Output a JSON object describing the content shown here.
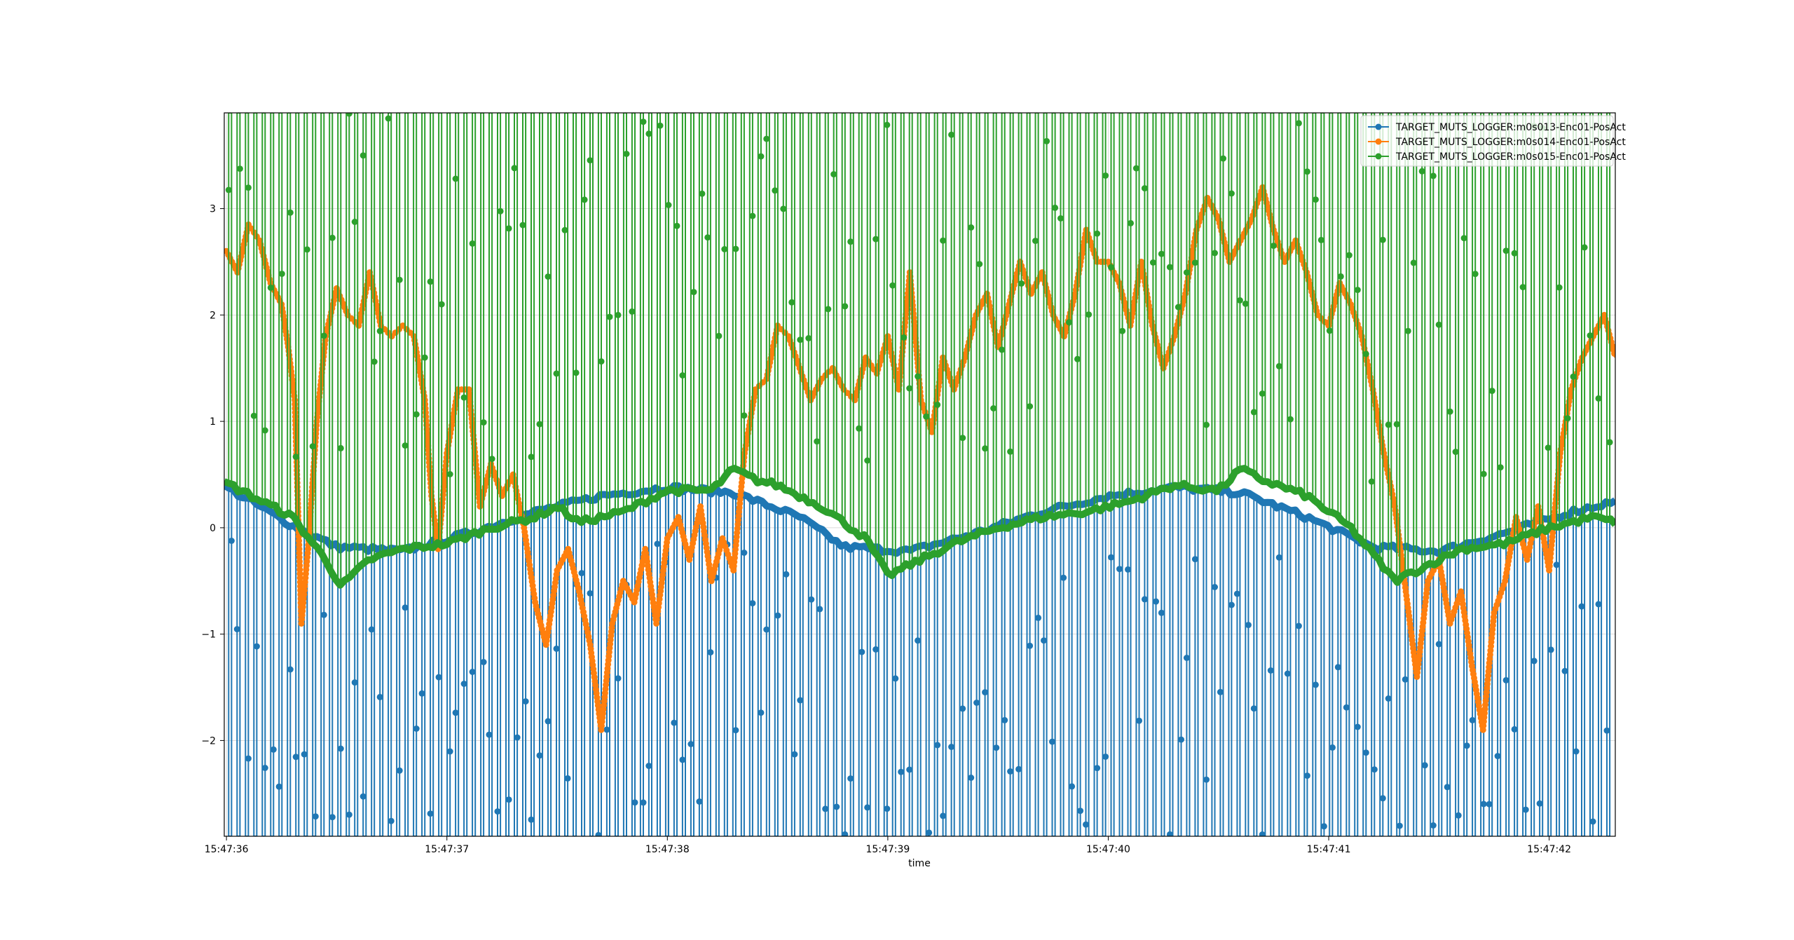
{
  "chart_data": {
    "type": "line",
    "title": "",
    "xlabel": "time",
    "ylabel": "",
    "xlim": [
      "15:47:35.99",
      "15:47:42.30"
    ],
    "ylim": [
      -2.9,
      3.9
    ],
    "x_ticks": [
      "15:47:36",
      "15:47:37",
      "15:47:38",
      "15:47:39",
      "15:47:40",
      "15:47:41",
      "15:47:42"
    ],
    "y_ticks": [
      "-2",
      "-1",
      "0",
      "1",
      "2",
      "3"
    ],
    "y_tick_values": [
      -2,
      -1,
      0,
      1,
      2,
      3
    ],
    "grid": true,
    "legend_position": "top-right",
    "series": [
      {
        "name": "TARGET_MUTS_LOGGER:m0s013-Enc01-PosAct",
        "color": "#1f77b4",
        "marker": "circle",
        "baseline": [
          [
            0.0,
            0.38
          ],
          [
            0.3,
            0.02
          ],
          [
            0.5,
            -0.18
          ],
          [
            0.8,
            -0.22
          ],
          [
            1.1,
            -0.05
          ],
          [
            1.4,
            0.15
          ],
          [
            1.7,
            0.3
          ],
          [
            2.0,
            0.38
          ],
          [
            2.3,
            0.33
          ],
          [
            2.6,
            0.1
          ],
          [
            2.8,
            -0.18
          ],
          [
            3.1,
            -0.22
          ],
          [
            3.4,
            -0.05
          ],
          [
            3.7,
            0.15
          ],
          [
            4.0,
            0.3
          ],
          [
            4.3,
            0.38
          ],
          [
            4.6,
            0.33
          ],
          [
            4.9,
            0.1
          ],
          [
            5.2,
            -0.18
          ],
          [
            5.5,
            -0.22
          ],
          [
            5.8,
            -0.05
          ],
          [
            6.1,
            0.15
          ],
          [
            6.3,
            0.25
          ]
        ],
        "spike_min": -2.9
      },
      {
        "name": "TARGET_MUTS_LOGGER:m0s014-Enc01-PosAct",
        "color": "#ff7f0e",
        "marker": "circle",
        "values": [
          [
            0.0,
            2.6
          ],
          [
            0.05,
            2.4
          ],
          [
            0.1,
            2.85
          ],
          [
            0.15,
            2.7
          ],
          [
            0.2,
            2.3
          ],
          [
            0.25,
            2.1
          ],
          [
            0.28,
            1.7
          ],
          [
            0.31,
            1.2
          ],
          [
            0.34,
            -0.9
          ],
          [
            0.37,
            -0.2
          ],
          [
            0.41,
            1.0
          ],
          [
            0.45,
            1.8
          ],
          [
            0.5,
            2.25
          ],
          [
            0.55,
            2.0
          ],
          [
            0.6,
            1.9
          ],
          [
            0.65,
            2.4
          ],
          [
            0.7,
            1.9
          ],
          [
            0.75,
            1.8
          ],
          [
            0.8,
            1.9
          ],
          [
            0.85,
            1.8
          ],
          [
            0.9,
            1.2
          ],
          [
            0.93,
            0.3
          ],
          [
            0.96,
            -0.2
          ],
          [
            1.0,
            0.7
          ],
          [
            1.05,
            1.3
          ],
          [
            1.1,
            1.3
          ],
          [
            1.15,
            0.2
          ],
          [
            1.2,
            0.6
          ],
          [
            1.25,
            0.3
          ],
          [
            1.3,
            0.5
          ],
          [
            1.35,
            0.0
          ],
          [
            1.4,
            -0.7
          ],
          [
            1.45,
            -1.1
          ],
          [
            1.5,
            -0.4
          ],
          [
            1.55,
            -0.2
          ],
          [
            1.6,
            -0.6
          ],
          [
            1.65,
            -1.1
          ],
          [
            1.7,
            -1.9
          ],
          [
            1.75,
            -0.9
          ],
          [
            1.8,
            -0.5
          ],
          [
            1.85,
            -0.7
          ],
          [
            1.9,
            -0.2
          ],
          [
            1.95,
            -0.9
          ],
          [
            2.0,
            -0.1
          ],
          [
            2.05,
            0.1
          ],
          [
            2.1,
            -0.3
          ],
          [
            2.15,
            0.2
          ],
          [
            2.2,
            -0.5
          ],
          [
            2.25,
            -0.1
          ],
          [
            2.3,
            -0.4
          ],
          [
            2.35,
            0.7
          ],
          [
            2.4,
            1.3
          ],
          [
            2.45,
            1.4
          ],
          [
            2.5,
            1.9
          ],
          [
            2.55,
            1.8
          ],
          [
            2.6,
            1.5
          ],
          [
            2.65,
            1.2
          ],
          [
            2.7,
            1.4
          ],
          [
            2.75,
            1.5
          ],
          [
            2.8,
            1.3
          ],
          [
            2.85,
            1.2
          ],
          [
            2.9,
            1.6
          ],
          [
            2.95,
            1.45
          ],
          [
            3.0,
            1.8
          ],
          [
            3.05,
            1.3
          ],
          [
            3.1,
            2.4
          ],
          [
            3.15,
            1.2
          ],
          [
            3.2,
            0.9
          ],
          [
            3.25,
            1.6
          ],
          [
            3.3,
            1.3
          ],
          [
            3.35,
            1.6
          ],
          [
            3.4,
            2.0
          ],
          [
            3.45,
            2.2
          ],
          [
            3.5,
            1.7
          ],
          [
            3.55,
            2.1
          ],
          [
            3.6,
            2.5
          ],
          [
            3.65,
            2.2
          ],
          [
            3.7,
            2.4
          ],
          [
            3.75,
            2.0
          ],
          [
            3.8,
            1.8
          ],
          [
            3.85,
            2.2
          ],
          [
            3.9,
            2.8
          ],
          [
            3.95,
            2.5
          ],
          [
            4.0,
            2.5
          ],
          [
            4.05,
            2.3
          ],
          [
            4.1,
            1.9
          ],
          [
            4.15,
            2.5
          ],
          [
            4.2,
            1.9
          ],
          [
            4.25,
            1.5
          ],
          [
            4.3,
            1.8
          ],
          [
            4.35,
            2.2
          ],
          [
            4.4,
            2.8
          ],
          [
            4.45,
            3.1
          ],
          [
            4.5,
            2.9
          ],
          [
            4.55,
            2.5
          ],
          [
            4.6,
            2.7
          ],
          [
            4.65,
            2.9
          ],
          [
            4.7,
            3.2
          ],
          [
            4.75,
            2.8
          ],
          [
            4.8,
            2.5
          ],
          [
            4.85,
            2.7
          ],
          [
            4.9,
            2.4
          ],
          [
            4.95,
            2.0
          ],
          [
            5.0,
            1.9
          ],
          [
            5.05,
            2.3
          ],
          [
            5.1,
            2.1
          ],
          [
            5.15,
            1.8
          ],
          [
            5.2,
            1.3
          ],
          [
            5.25,
            0.7
          ],
          [
            5.3,
            0.2
          ],
          [
            5.35,
            -0.6
          ],
          [
            5.4,
            -1.4
          ],
          [
            5.45,
            -0.5
          ],
          [
            5.5,
            -0.3
          ],
          [
            5.55,
            -0.9
          ],
          [
            5.6,
            -0.6
          ],
          [
            5.65,
            -1.3
          ],
          [
            5.7,
            -1.9
          ],
          [
            5.75,
            -0.8
          ],
          [
            5.8,
            -0.5
          ],
          [
            5.85,
            0.1
          ],
          [
            5.9,
            -0.3
          ],
          [
            5.95,
            0.2
          ],
          [
            6.0,
            -0.4
          ],
          [
            6.05,
            0.7
          ],
          [
            6.1,
            1.3
          ],
          [
            6.15,
            1.6
          ],
          [
            6.2,
            1.8
          ],
          [
            6.25,
            2.0
          ],
          [
            6.3,
            1.6
          ]
        ]
      },
      {
        "name": "TARGET_MUTS_LOGGER:m0s015-Enc01-PosAct",
        "color": "#2ca02c",
        "marker": "circle",
        "baseline": [
          [
            0.0,
            0.42
          ],
          [
            0.3,
            0.1
          ],
          [
            0.45,
            -0.3
          ],
          [
            0.52,
            -0.55
          ],
          [
            0.65,
            -0.3
          ],
          [
            0.8,
            -0.2
          ],
          [
            1.0,
            -0.15
          ],
          [
            1.2,
            0.0
          ],
          [
            1.4,
            0.1
          ],
          [
            1.5,
            0.2
          ],
          [
            1.6,
            0.05
          ],
          [
            1.8,
            0.15
          ],
          [
            2.0,
            0.35
          ],
          [
            2.2,
            0.35
          ],
          [
            2.3,
            0.55
          ],
          [
            2.4,
            0.45
          ],
          [
            2.5,
            0.4
          ],
          [
            2.7,
            0.2
          ],
          [
            2.9,
            -0.1
          ],
          [
            3.0,
            -0.45
          ],
          [
            3.1,
            -0.35
          ],
          [
            3.3,
            -0.15
          ],
          [
            3.5,
            0.0
          ],
          [
            3.7,
            0.1
          ],
          [
            3.9,
            0.15
          ],
          [
            4.1,
            0.25
          ],
          [
            4.3,
            0.4
          ],
          [
            4.5,
            0.35
          ],
          [
            4.6,
            0.55
          ],
          [
            4.7,
            0.45
          ],
          [
            4.9,
            0.3
          ],
          [
            5.1,
            0.0
          ],
          [
            5.3,
            -0.5
          ],
          [
            5.4,
            -0.4
          ],
          [
            5.6,
            -0.2
          ],
          [
            5.8,
            -0.15
          ],
          [
            6.0,
            0.0
          ],
          [
            6.2,
            0.1
          ],
          [
            6.3,
            0.05
          ]
        ],
        "spike_max": 3.9
      }
    ]
  }
}
